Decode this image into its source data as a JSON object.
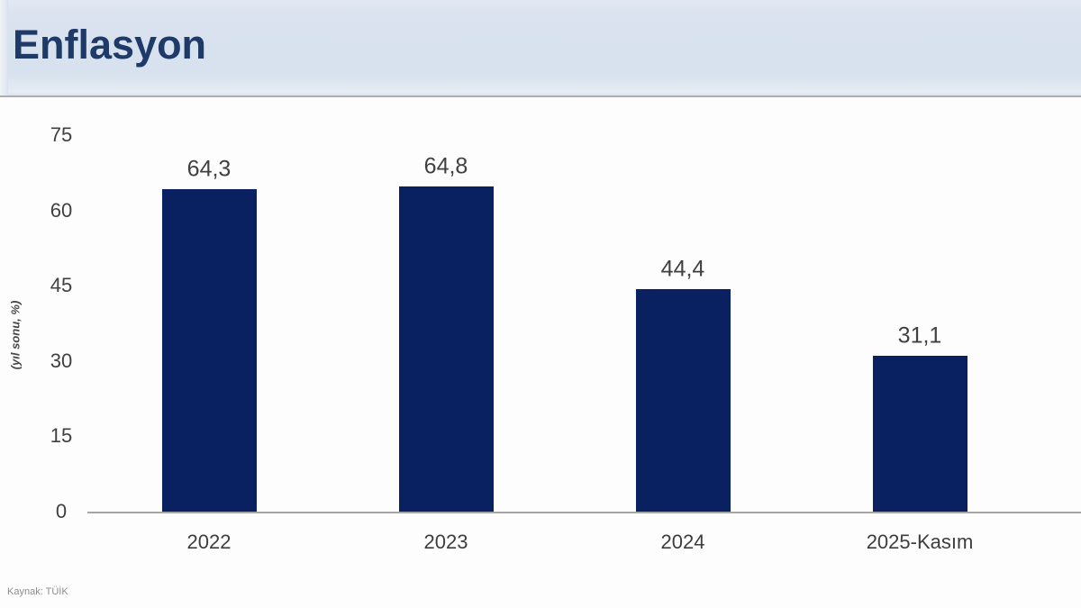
{
  "slide": {
    "title": "Enflasyon",
    "source": "Kaynak: TÜİK"
  },
  "chart_data": {
    "type": "bar",
    "title": "Enflasyon",
    "categories": [
      "2022",
      "2023",
      "2024",
      "2025-Kasım"
    ],
    "values": [
      64.3,
      64.8,
      44.4,
      31.1
    ],
    "value_labels": [
      "64,3",
      "64,8",
      "44,4",
      "31,1"
    ],
    "xlabel": "",
    "ylabel": "(yıl sonu, %)",
    "ylim": [
      0,
      75
    ],
    "yticks": [
      0,
      15,
      30,
      45,
      60,
      75
    ],
    "grid": false,
    "legend": "none",
    "bar_color": "#0a2161"
  },
  "colors": {
    "header_background": "#d9e2ee",
    "title_text": "#1e3a68",
    "bar": "#0a2161",
    "axis_line": "#a6a6a6",
    "label_text": "#404040",
    "source_text": "#8c8c8c"
  }
}
